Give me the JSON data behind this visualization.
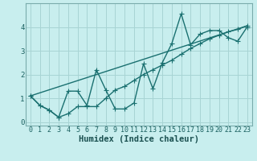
{
  "xlabel": "Humidex (Indice chaleur)",
  "bg_color": "#c8eeee",
  "grid_color": "#a8d4d4",
  "line_color": "#1a7070",
  "line1_x": [
    0,
    1,
    2,
    3,
    4,
    5,
    6,
    7,
    8,
    9,
    10,
    11,
    12,
    13,
    14,
    15,
    16,
    17,
    18,
    19,
    20,
    21,
    22,
    23
  ],
  "line1_y": [
    1.1,
    0.7,
    0.5,
    0.2,
    1.3,
    1.3,
    0.7,
    2.2,
    1.35,
    0.55,
    0.55,
    0.8,
    2.45,
    1.4,
    2.5,
    3.3,
    4.55,
    3.25,
    3.7,
    3.85,
    3.85,
    3.55,
    3.4,
    4.0
  ],
  "line2_x": [
    0,
    1,
    2,
    3,
    4,
    5,
    6,
    7,
    8,
    9,
    10,
    11,
    12,
    13,
    14,
    15,
    16,
    17,
    18,
    19,
    20,
    21,
    22,
    23
  ],
  "line2_y": [
    1.1,
    0.7,
    0.5,
    0.2,
    0.35,
    0.65,
    0.65,
    0.65,
    1.0,
    1.35,
    1.5,
    1.75,
    2.0,
    2.2,
    2.4,
    2.6,
    2.85,
    3.1,
    3.3,
    3.5,
    3.65,
    3.8,
    3.9,
    4.05
  ],
  "line3_x": [
    0,
    23
  ],
  "line3_y": [
    1.1,
    4.05
  ],
  "ylim": [
    -0.15,
    5.0
  ],
  "xlim": [
    -0.5,
    23.5
  ],
  "yticks": [
    0,
    1,
    2,
    3,
    4
  ],
  "xticks": [
    0,
    1,
    2,
    3,
    4,
    5,
    6,
    7,
    8,
    9,
    10,
    11,
    12,
    13,
    14,
    15,
    16,
    17,
    18,
    19,
    20,
    21,
    22,
    23
  ],
  "xtick_labels": [
    "0",
    "1",
    "2",
    "3",
    "4",
    "5",
    "6",
    "7",
    "8",
    "9",
    "10",
    "11",
    "12",
    "13",
    "14",
    "15",
    "16",
    "17",
    "18",
    "19",
    "20",
    "21",
    "22",
    "23"
  ],
  "ytick_labels": [
    "0",
    "1",
    "2",
    "3",
    "4"
  ],
  "xlabel_fontsize": 7.5,
  "tick_fontsize": 6.0,
  "marker_size": 2.5,
  "linewidth": 1.0
}
